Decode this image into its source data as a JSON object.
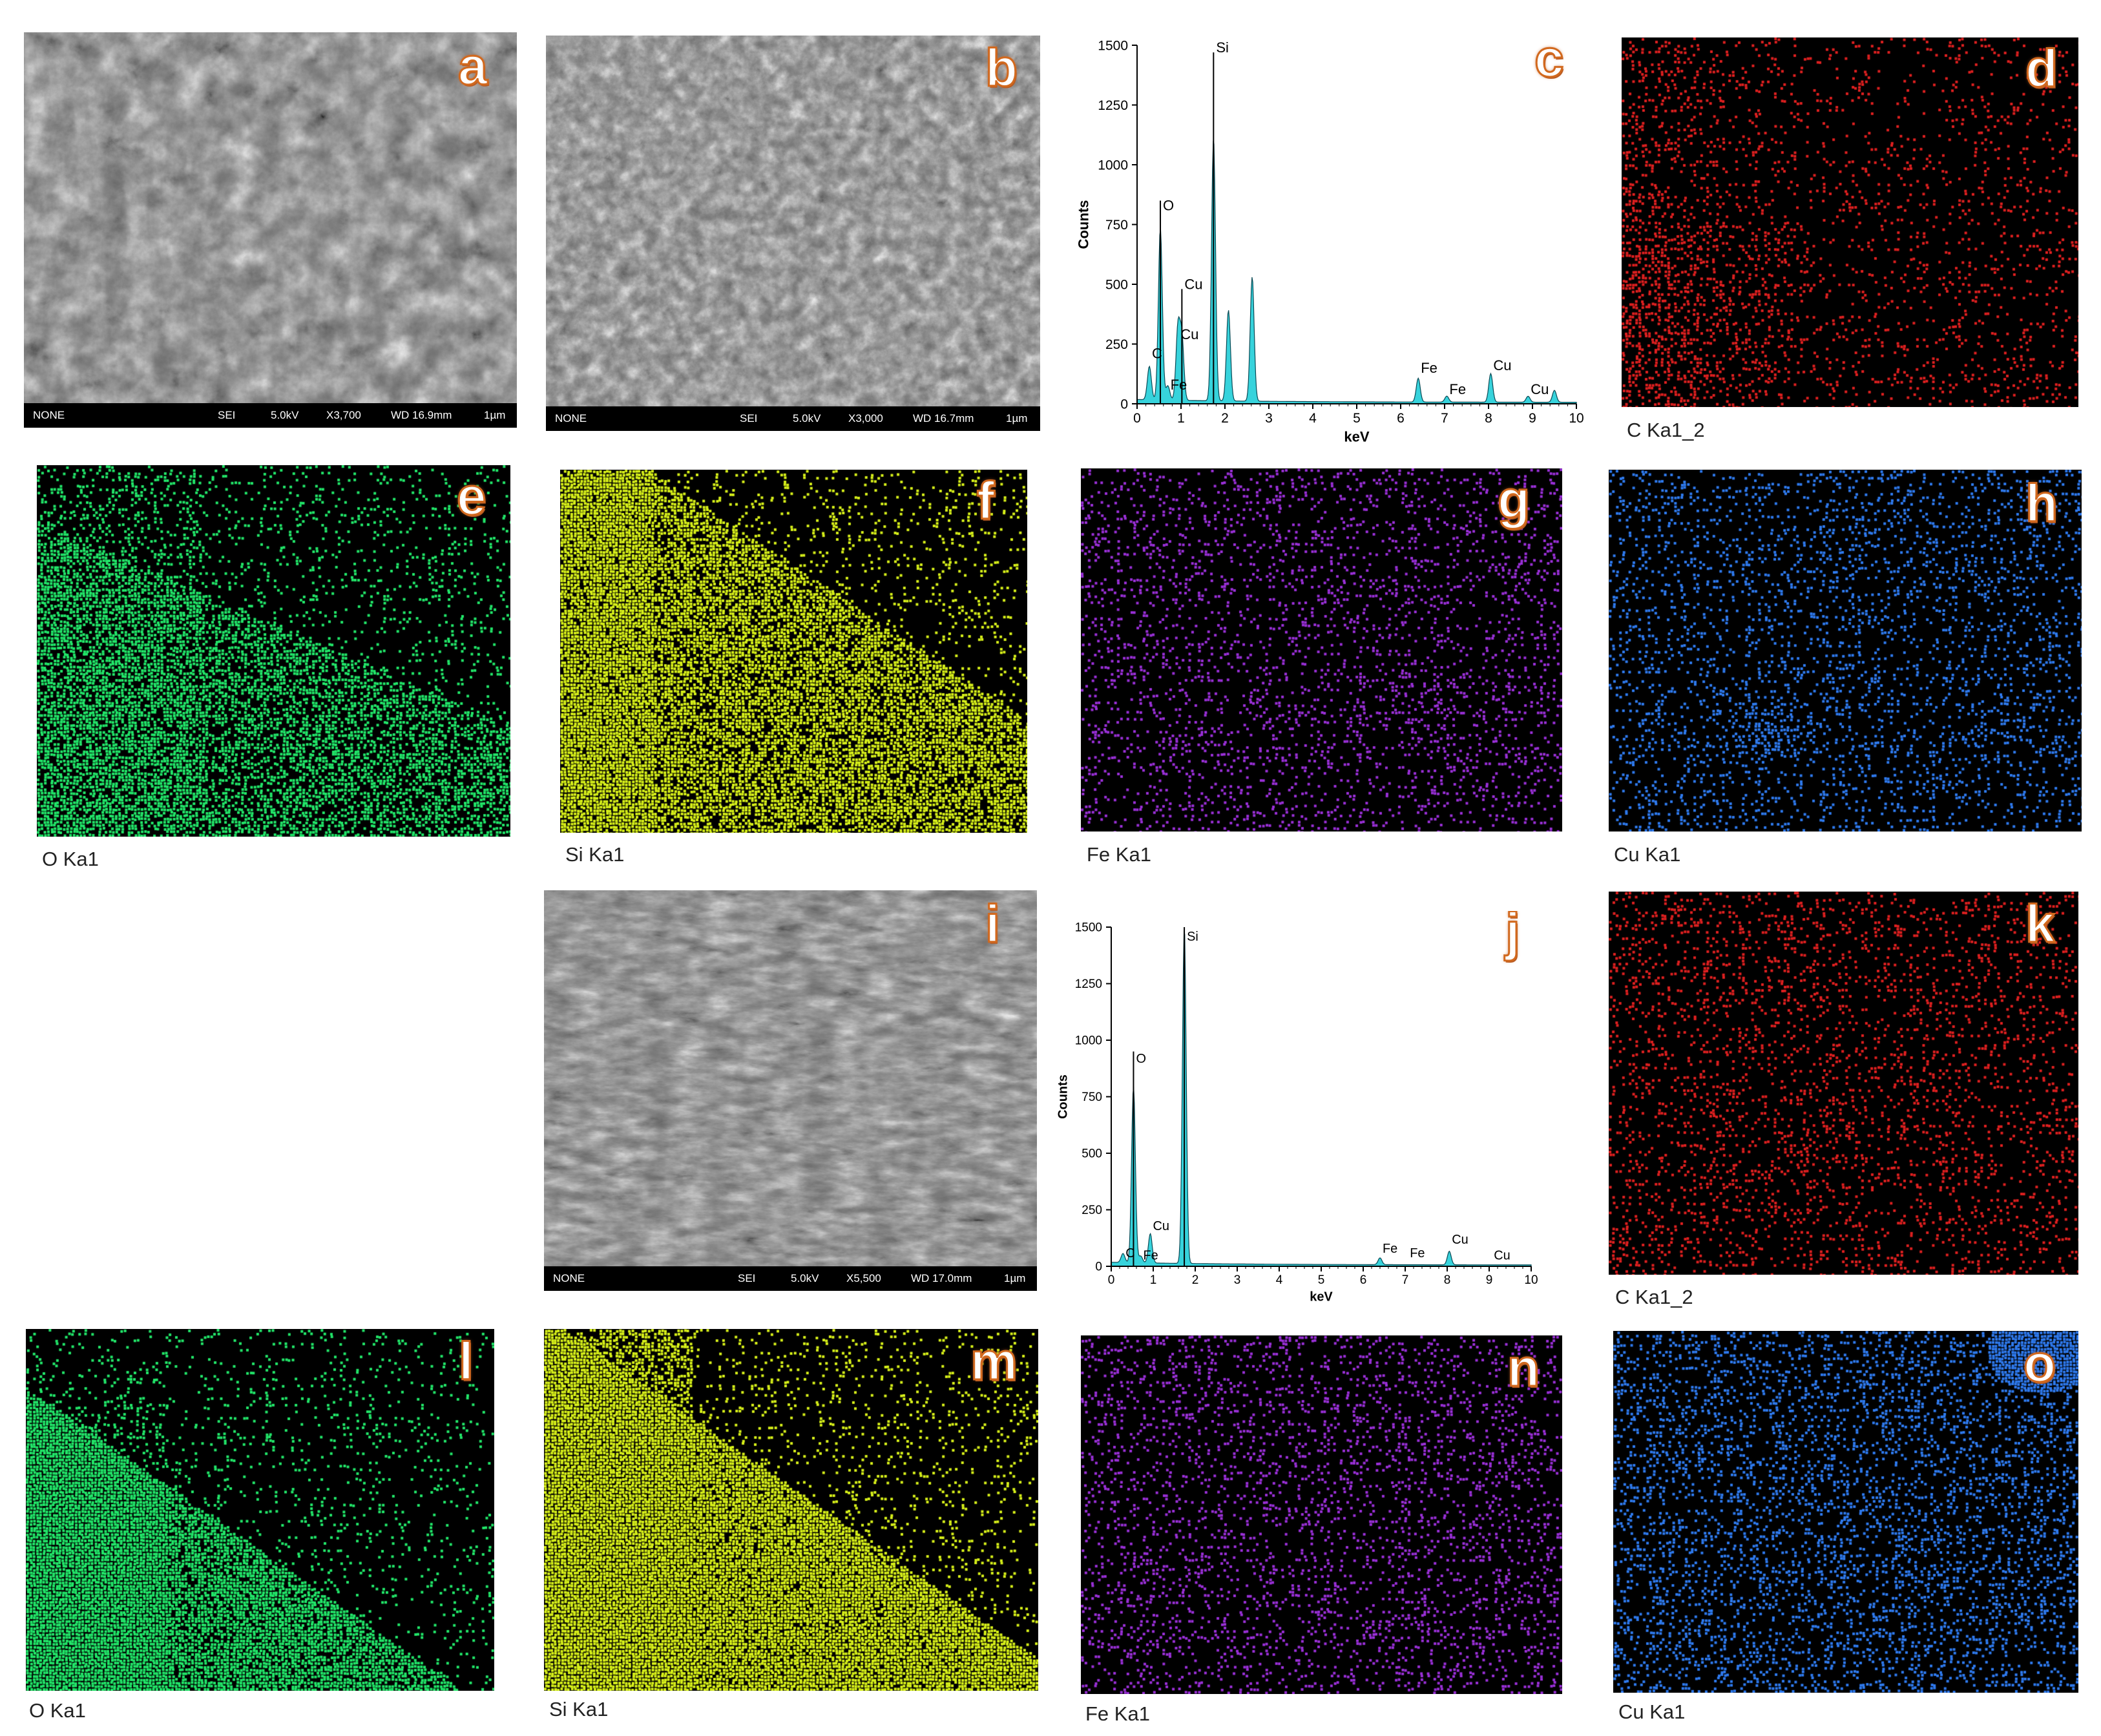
{
  "panel_letters": {
    "a": "a",
    "b": "b",
    "c": "c",
    "d": "d",
    "e": "e",
    "f": "f",
    "g": "g",
    "h": "h",
    "i": "i",
    "j": "j",
    "k": "k",
    "l": "l",
    "m": "m",
    "n": "n",
    "o": "o"
  },
  "sem_panels": [
    {
      "id": "a",
      "fields": [
        "NONE",
        "SEI",
        "5.0kV",
        "X3,700",
        "WD 16.9mm",
        "1µm"
      ]
    },
    {
      "id": "b",
      "fields": [
        "NONE",
        "SEI",
        "5.0kV",
        "X3,000",
        "WD 16.7mm",
        "1µm"
      ]
    },
    {
      "id": "i",
      "fields": [
        "NONE",
        "SEI",
        "5.0kV",
        "X5,500",
        "WD 17.0mm",
        "1µm"
      ]
    }
  ],
  "map_panels": [
    {
      "id": "d",
      "caption": "C Ka1_2",
      "color": "#e02020"
    },
    {
      "id": "e",
      "caption": "O Ka1",
      "color": "#22e86a"
    },
    {
      "id": "f",
      "caption": "Si Ka1",
      "color": "#d9f21a"
    },
    {
      "id": "g",
      "caption": "Fe Ka1",
      "color": "#9b30d9"
    },
    {
      "id": "h",
      "caption": "Cu Ka1",
      "color": "#2f7bf0"
    },
    {
      "id": "k",
      "caption": "C Ka1_2",
      "color": "#e02020"
    },
    {
      "id": "l",
      "caption": "O Ka1",
      "color": "#22e86a"
    },
    {
      "id": "m",
      "caption": "Si Ka1",
      "color": "#d9f21a"
    },
    {
      "id": "n",
      "caption": "Fe Ka1",
      "color": "#9b30d9"
    },
    {
      "id": "o",
      "caption": "Cu Ka1",
      "color": "#2f7bf0"
    }
  ],
  "chart_data": [
    {
      "panel": "c",
      "type": "line",
      "xlabel": "keV",
      "ylabel": "Counts",
      "xlim": [
        0,
        10
      ],
      "ylim": [
        0,
        1500
      ],
      "xticks": [
        0,
        1,
        2,
        3,
        4,
        5,
        6,
        7,
        8,
        9,
        10
      ],
      "yticks": [
        0,
        250,
        500,
        750,
        1000,
        1250,
        1500
      ],
      "fill_color": "#37d3dc",
      "peaks": [
        {
          "x": 0.28,
          "y": 140
        },
        {
          "x": 0.53,
          "y": 720
        },
        {
          "x": 0.7,
          "y": 60
        },
        {
          "x": 0.93,
          "y": 300
        },
        {
          "x": 1.02,
          "y": 260
        },
        {
          "x": 1.74,
          "y": 1100
        },
        {
          "x": 2.08,
          "y": 380
        },
        {
          "x": 2.62,
          "y": 520
        },
        {
          "x": 6.4,
          "y": 100
        },
        {
          "x": 7.05,
          "y": 25
        },
        {
          "x": 8.05,
          "y": 120
        },
        {
          "x": 8.9,
          "y": 25
        },
        {
          "x": 9.5,
          "y": 50
        }
      ],
      "annotations": [
        {
          "label": "C",
          "x": 0.28,
          "y": 190,
          "line_top": null
        },
        {
          "label": "O",
          "x": 0.53,
          "y": 810,
          "line_top": 850
        },
        {
          "label": "Fe",
          "x": 0.7,
          "y": 60,
          "line_top": null
        },
        {
          "label": "Cu",
          "x": 0.93,
          "y": 270,
          "line_top": null
        },
        {
          "label": "Cu",
          "x": 1.02,
          "y": 480,
          "line_top": 480
        },
        {
          "label": "Si",
          "x": 1.74,
          "y": 1470,
          "line_top": 1470
        },
        {
          "label": "Fe",
          "x": 6.4,
          "y": 130,
          "line_top": null
        },
        {
          "label": "Fe",
          "x": 7.05,
          "y": 40,
          "line_top": null
        },
        {
          "label": "Cu",
          "x": 8.05,
          "y": 140,
          "line_top": null
        },
        {
          "label": "Cu",
          "x": 8.9,
          "y": 40,
          "line_top": null
        }
      ]
    },
    {
      "panel": "j",
      "type": "line",
      "xlabel": "keV",
      "ylabel": "Counts",
      "xlim": [
        0,
        10
      ],
      "ylim": [
        0,
        1500
      ],
      "xticks": [
        0,
        1,
        2,
        3,
        4,
        5,
        6,
        7,
        8,
        9,
        10
      ],
      "yticks": [
        0,
        250,
        500,
        750,
        1000,
        1250,
        1500
      ],
      "fill_color": "#37d3dc",
      "peaks": [
        {
          "x": 0.28,
          "y": 40
        },
        {
          "x": 0.53,
          "y": 780
        },
        {
          "x": 0.7,
          "y": 30
        },
        {
          "x": 0.93,
          "y": 130
        },
        {
          "x": 1.74,
          "y": 1490
        },
        {
          "x": 6.4,
          "y": 30
        },
        {
          "x": 8.05,
          "y": 60
        }
      ],
      "annotations": [
        {
          "label": "C",
          "x": 0.28,
          "y": 40,
          "line_top": null
        },
        {
          "label": "O",
          "x": 0.53,
          "y": 900,
          "line_top": 950
        },
        {
          "label": "Fe",
          "x": 0.7,
          "y": 30,
          "line_top": null
        },
        {
          "label": "Cu",
          "x": 0.93,
          "y": 160,
          "line_top": null
        },
        {
          "label": "Si",
          "x": 1.74,
          "y": 1440,
          "line_top": 1500
        },
        {
          "label": "Fe",
          "x": 6.4,
          "y": 60,
          "line_top": null
        },
        {
          "label": "Fe",
          "x": 7.05,
          "y": 40,
          "line_top": null
        },
        {
          "label": "Cu",
          "x": 8.05,
          "y": 100,
          "line_top": null
        },
        {
          "label": "Cu",
          "x": 9.05,
          "y": 30,
          "line_top": null
        }
      ]
    }
  ]
}
